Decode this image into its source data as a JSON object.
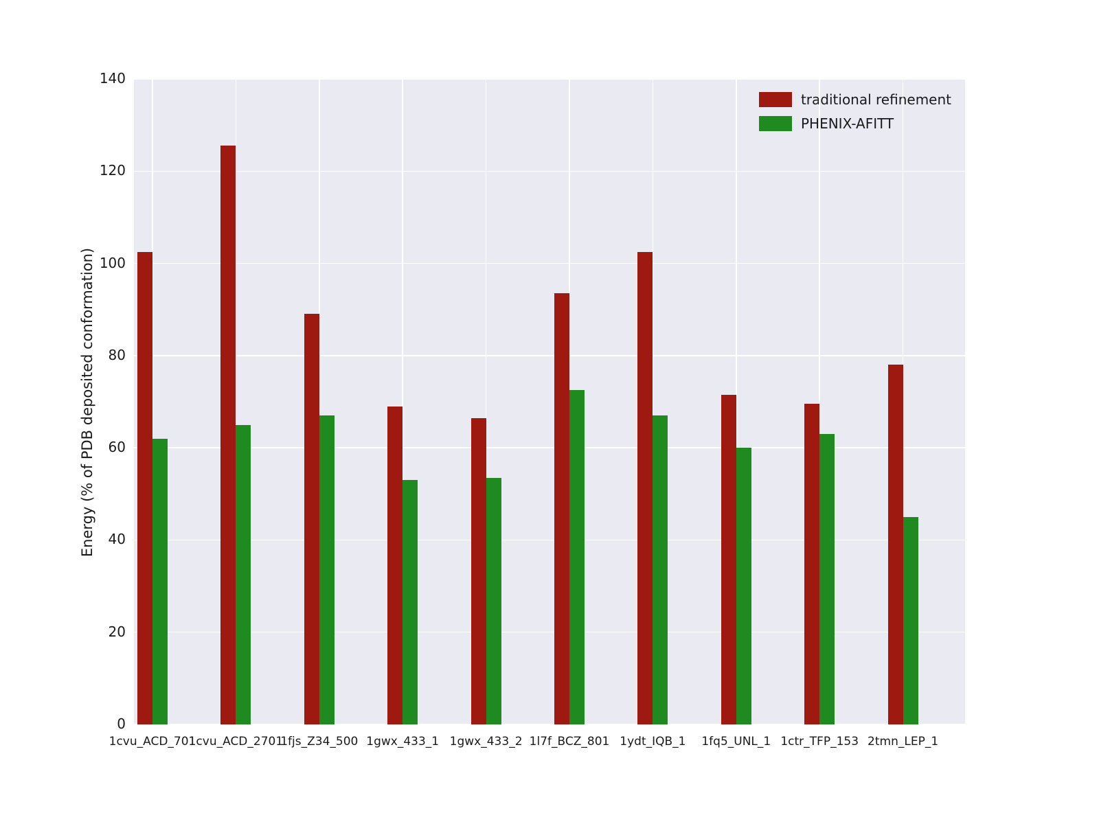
{
  "chart_data": {
    "type": "bar",
    "title": "",
    "xlabel": "",
    "ylabel": "Energy (% of PDB deposited conformation)",
    "ylim": [
      0,
      140
    ],
    "yticks": [
      0,
      20,
      40,
      60,
      80,
      100,
      120,
      140
    ],
    "grid": true,
    "plot_background": "#eaeaf2",
    "grid_color": "#ffffff",
    "legend_position": "upper right",
    "categories": [
      "1cvu_ACD_701",
      "1cvu_ACD_2701",
      "1fjs_Z34_500",
      "1gwx_433_1",
      "1gwx_433_2",
      "1l7f_BCZ_801",
      "1ydt_IQB_1",
      "1fq5_UNL_1",
      "1ctr_TFP_153",
      "2tmn_LEP_1"
    ],
    "series": [
      {
        "name": "traditional refinement",
        "color": "#9e1a10",
        "values": [
          102.5,
          125.5,
          89,
          69,
          66.5,
          93.5,
          102.5,
          71.5,
          69.5,
          78
        ]
      },
      {
        "name": "PHENIX-AFITT",
        "color": "#1f8a1f",
        "values": [
          62,
          65,
          67,
          53,
          53.5,
          72.5,
          67,
          60,
          63,
          45
        ]
      }
    ]
  }
}
